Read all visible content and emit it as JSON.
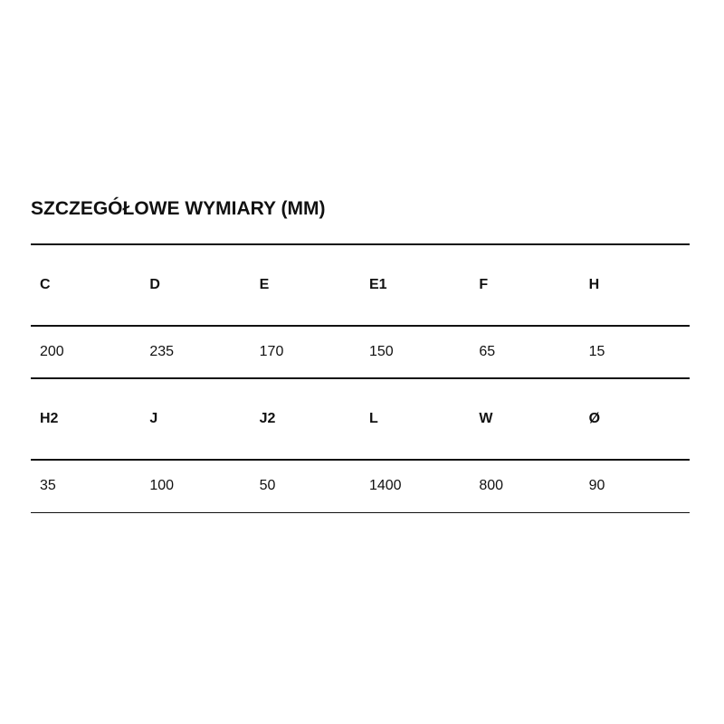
{
  "title": "SZCZEGÓŁOWE WYMIARY (MM)",
  "table": [
    {
      "headers": [
        "C",
        "D",
        "E",
        "E1",
        "F",
        "H"
      ],
      "values": [
        "200",
        "235",
        "170",
        "150",
        "65",
        "15"
      ]
    },
    {
      "headers": [
        "H2",
        "J",
        "J2",
        "L",
        "W",
        "Ø"
      ],
      "values": [
        "35",
        "100",
        "50",
        "1400",
        "800",
        "90"
      ]
    }
  ]
}
